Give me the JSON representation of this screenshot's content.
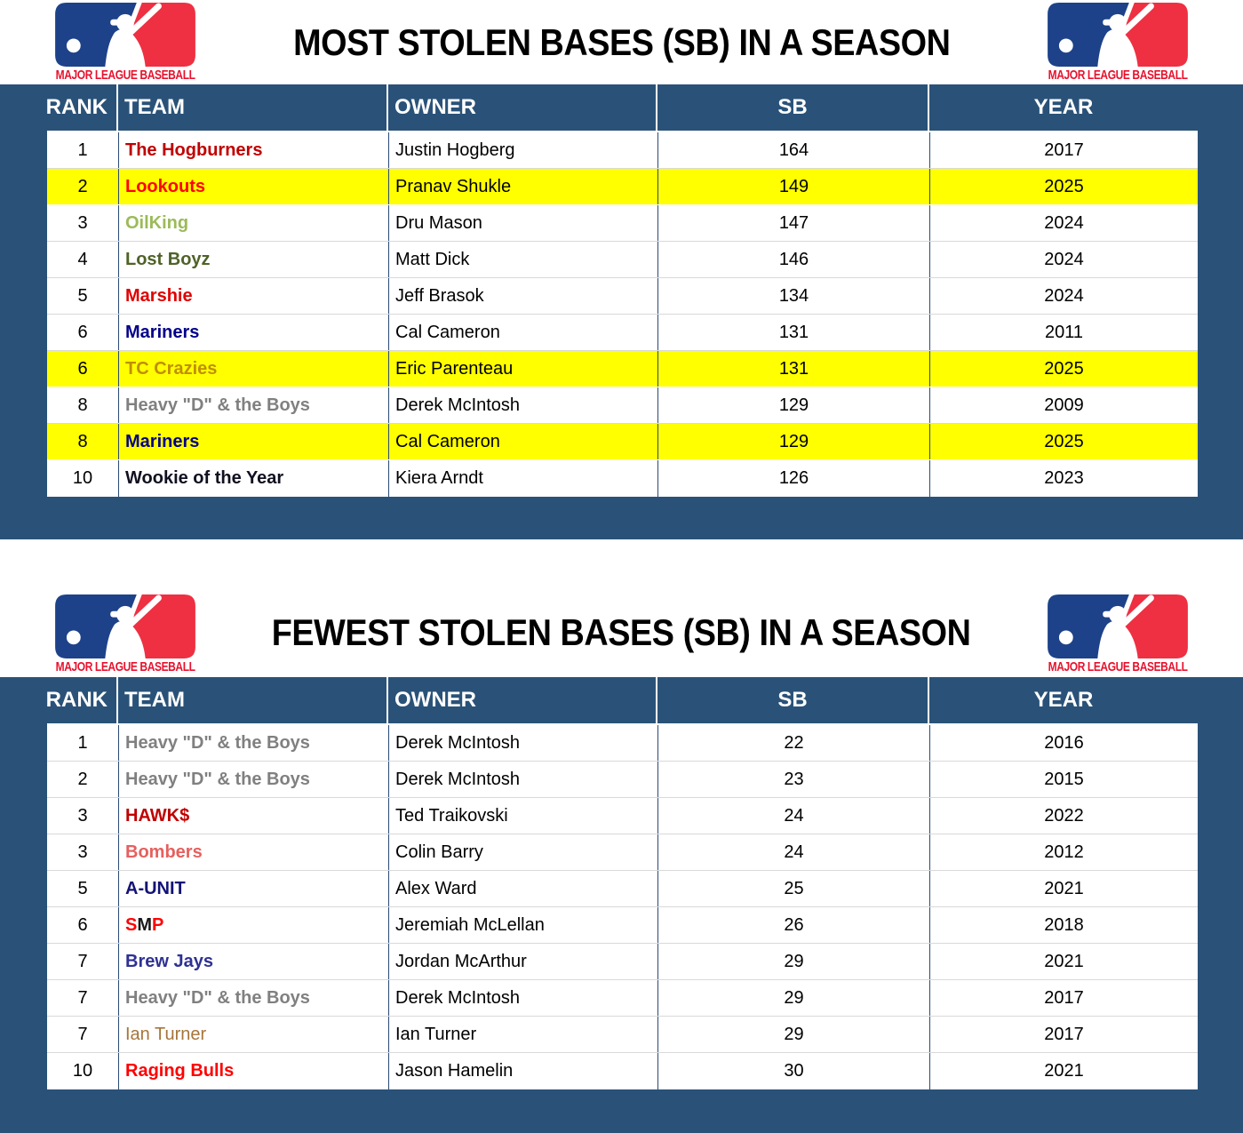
{
  "colors": {
    "band_blue": "#2A5278",
    "highlight_yellow": "#FFFF00",
    "logo_navy": "#1D4289",
    "logo_red": "#EE3042",
    "caption_red": "#E8112D"
  },
  "sections": [
    {
      "title": "MOST STOLEN BASES (SB) IN A SEASON",
      "logo_caption": "MAJOR LEAGUE BASEBALL",
      "columns": [
        "RANK",
        "TEAM",
        "OWNER",
        "SB",
        "YEAR"
      ],
      "rows": [
        {
          "rank": "1",
          "team": "The Hogburners",
          "team_color": "#C00000",
          "team_bold": true,
          "owner": "Justin Hogberg",
          "sb": "164",
          "year": "2017",
          "highlight": false
        },
        {
          "rank": "2",
          "team": "Lookouts",
          "team_color": "#FF0000",
          "team_bold": true,
          "owner": "Pranav Shukle",
          "sb": "149",
          "year": "2025",
          "highlight": true
        },
        {
          "rank": "3",
          "team": "OilKing",
          "team_color": "#9BBB59",
          "team_bold": true,
          "owner": "Dru Mason",
          "sb": "147",
          "year": "2024",
          "highlight": false
        },
        {
          "rank": "4",
          "team": "Lost Boyz",
          "team_color": "#4F6228",
          "team_bold": true,
          "owner": "Matt Dick",
          "sb": "146",
          "year": "2024",
          "highlight": false
        },
        {
          "rank": "5",
          "team": "Marshie",
          "team_color": "#E00000",
          "team_bold": true,
          "owner": "Jeff Brasok",
          "sb": "134",
          "year": "2024",
          "highlight": false
        },
        {
          "rank": "6",
          "team": "Mariners",
          "team_color": "#00008B",
          "team_bold": true,
          "owner": "Cal Cameron",
          "sb": "131",
          "year": "2011",
          "highlight": false
        },
        {
          "rank": "6",
          "team": "TC Crazies",
          "team_color": "#BF8F00",
          "team_bold": true,
          "owner": "Eric Parenteau",
          "sb": "131",
          "year": "2025",
          "highlight": true
        },
        {
          "rank": "8",
          "team": "Heavy \"D\" & the Boys",
          "team_color": "#808080",
          "team_bold": true,
          "owner": "Derek McIntosh",
          "sb": "129",
          "year": "2009",
          "highlight": false
        },
        {
          "rank": "8",
          "team": "Mariners",
          "team_color": "#00008B",
          "team_bold": true,
          "owner": "Cal Cameron",
          "sb": "129",
          "year": "2025",
          "highlight": true
        },
        {
          "rank": "10",
          "team": "Wookie of the Year",
          "team_color": "#101020",
          "team_bold": true,
          "owner": "Kiera Arndt",
          "sb": "126",
          "year": "2023",
          "highlight": false
        }
      ]
    },
    {
      "title": "FEWEST STOLEN BASES (SB) IN A SEASON",
      "logo_caption": "MAJOR LEAGUE BASEBALL",
      "columns": [
        "RANK",
        "TEAM",
        "OWNER",
        "SB",
        "YEAR"
      ],
      "rows": [
        {
          "rank": "1",
          "team": "Heavy \"D\" & the Boys",
          "team_color": "#808080",
          "team_bold": true,
          "owner": "Derek McIntosh",
          "sb": "22",
          "year": "2016",
          "highlight": false
        },
        {
          "rank": "2",
          "team": "Heavy \"D\" & the Boys",
          "team_color": "#808080",
          "team_bold": true,
          "owner": "Derek McIntosh",
          "sb": "23",
          "year": "2015",
          "highlight": false
        },
        {
          "rank": "3",
          "team": "HAWK$",
          "team_color": "#C00000",
          "team_bold": true,
          "owner": "Ted Traikovski",
          "sb": "24",
          "year": "2022",
          "highlight": false
        },
        {
          "rank": "3",
          "team": "Bombers",
          "team_color": "#E5605E",
          "team_bold": true,
          "owner": "Colin Barry",
          "sb": "24",
          "year": "2012",
          "highlight": false
        },
        {
          "rank": "5",
          "team": "A-UNIT",
          "team_color": "#131377",
          "team_bold": true,
          "owner": "Alex Ward",
          "sb": "25",
          "year": "2021",
          "highlight": false
        },
        {
          "rank": "6",
          "team": "SMP",
          "team_segments": [
            {
              "text": "S",
              "color": "#FF0000"
            },
            {
              "text": "M",
              "color": "#1A1A1A"
            },
            {
              "text": "P",
              "color": "#FF0000"
            }
          ],
          "team_bold": true,
          "owner": "Jeremiah McLellan",
          "sb": "26",
          "year": "2018",
          "highlight": false
        },
        {
          "rank": "7",
          "team": "Brew Jays",
          "team_color": "#2E3192",
          "team_bold": true,
          "owner": "Jordan McArthur",
          "sb": "29",
          "year": "2021",
          "highlight": false
        },
        {
          "rank": "7",
          "team": "Heavy \"D\" & the Boys",
          "team_color": "#808080",
          "team_bold": true,
          "owner": "Derek McIntosh",
          "sb": "29",
          "year": "2017",
          "highlight": false
        },
        {
          "rank": "7",
          "team": "Ian Turner",
          "team_color": "#A6753B",
          "team_bold": false,
          "owner": "Ian Turner",
          "sb": "29",
          "year": "2017",
          "highlight": false
        },
        {
          "rank": "10",
          "team": "Raging Bulls",
          "team_color": "#FF0000",
          "team_bold": true,
          "owner": "Jason Hamelin",
          "sb": "30",
          "year": "2021",
          "highlight": false
        }
      ]
    }
  ]
}
